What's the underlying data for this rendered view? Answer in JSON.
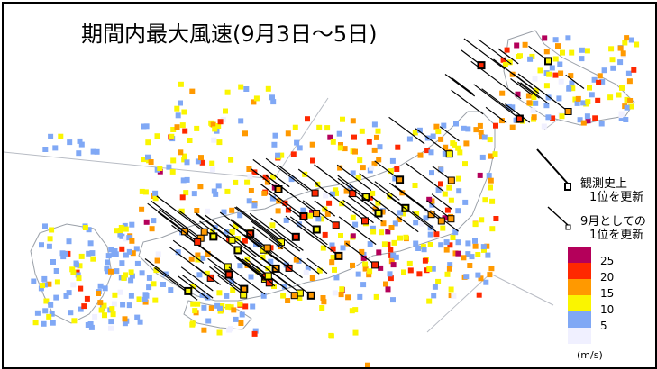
{
  "title": "期間内最大風速(9月3日～5日)",
  "legend": {
    "record_all_time_line1": "観測史上",
    "record_all_time_line2": "1位を更新",
    "record_september_line1": "9月としての",
    "record_september_line2": "1位を更新",
    "unit": "(m/s)",
    "bins": [
      {
        "label": "25",
        "color": "#b4005a"
      },
      {
        "label": "20",
        "color": "#ff2800"
      },
      {
        "label": "15",
        "color": "#ff9900"
      },
      {
        "label": "10",
        "color": "#faf500"
      },
      {
        "label": "5",
        "color": "#80a8f5"
      },
      {
        "label": "",
        "color": "#f0f0ff"
      }
    ]
  },
  "colors": {
    "land": "#ffffff",
    "coast": "#9aa0a8",
    "boundary": "#b8bcc4",
    "arrow": "#000000"
  }
}
